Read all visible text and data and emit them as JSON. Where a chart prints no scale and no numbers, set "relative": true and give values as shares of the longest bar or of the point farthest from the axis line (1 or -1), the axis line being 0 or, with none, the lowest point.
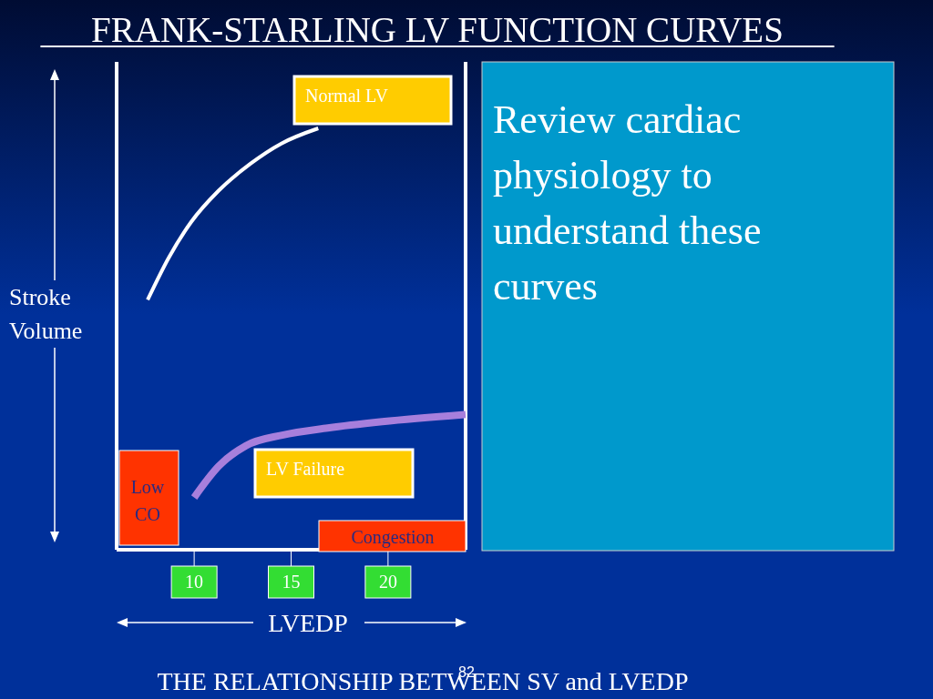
{
  "chart_data": {
    "type": "line",
    "title": "FRANK-STARLING LV FUNCTION CURVES",
    "subtitle": "THE RELATIONSHIP BETWEEN SV and LVEDP",
    "xlabel": "LVEDP",
    "ylabel": "Stroke Volume",
    "relative": true,
    "xlim": [
      6,
      24
    ],
    "xticks": [
      10,
      15,
      20
    ],
    "series": [
      {
        "name": "Normal LV",
        "color": "#ffffff",
        "x": [
          7.6,
          8.7,
          9.85,
          11.26,
          12.9,
          14.5,
          16.4
        ],
        "values": [
          0.593,
          0.694,
          0.778,
          0.852,
          0.916,
          0.964,
          1
        ]
      },
      {
        "name": "LV Failure",
        "color": "#a77fdc",
        "x": [
          10.0,
          11.26,
          12.67,
          14.54,
          16.89,
          19.7,
          24.0
        ],
        "values": [
          0.124,
          0.198,
          0.247,
          0.272,
          0.289,
          0.304,
          0.321
        ]
      }
    ],
    "annotations": [
      "Low CO",
      "Congestion",
      "Review cardiac physiology to understand these curves",
      "82"
    ]
  }
}
